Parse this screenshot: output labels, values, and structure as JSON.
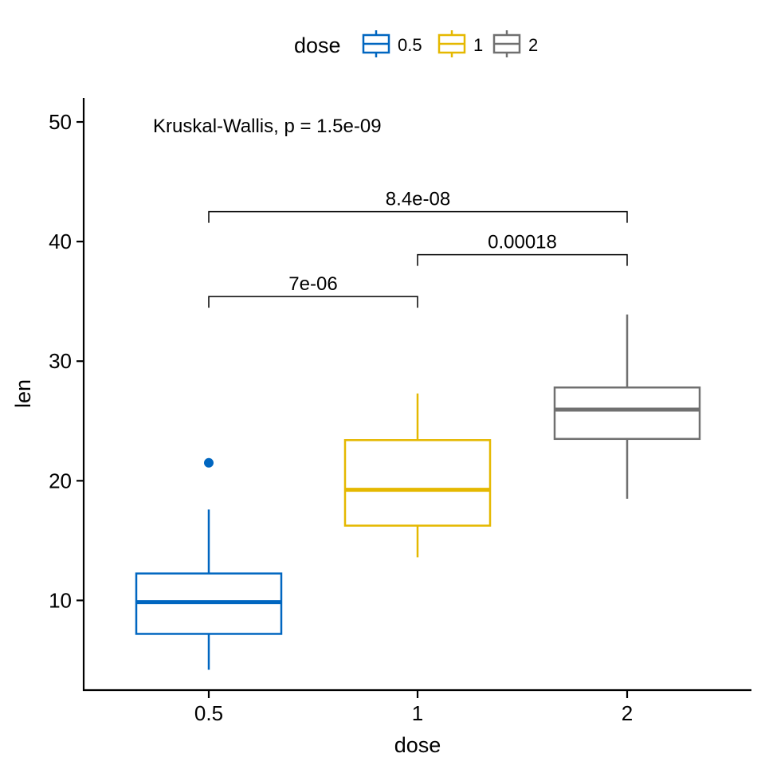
{
  "chart_data": {
    "type": "box",
    "xlabel": "dose",
    "ylabel": "len",
    "categories": [
      "0.5",
      "1",
      "2"
    ],
    "ylim": [
      2.5,
      52
    ],
    "yticks": [
      10,
      20,
      30,
      40,
      50
    ],
    "grid": false,
    "legend": {
      "title": "dose",
      "position": "top",
      "entries": [
        "0.5",
        "1",
        "2"
      ]
    },
    "series": [
      {
        "category": "0.5",
        "color": "#0066c0",
        "whisker_low": 4.2,
        "q1": 7.2,
        "median": 9.85,
        "q3": 12.25,
        "whisker_high": 17.6,
        "outliers": [
          21.5
        ]
      },
      {
        "category": "1",
        "color": "#e5b800",
        "whisker_low": 13.6,
        "q1": 16.25,
        "median": 19.25,
        "q3": 23.4,
        "whisker_high": 27.3,
        "outliers": []
      },
      {
        "category": "2",
        "color": "#707070",
        "whisker_low": 18.5,
        "q1": 23.5,
        "median": 25.95,
        "q3": 27.8,
        "whisker_high": 33.9,
        "outliers": []
      }
    ],
    "annotations": {
      "global_test": "Kruskal-Wallis, p = 1.5e-09",
      "comparisons": [
        {
          "group1": "0.5",
          "group2": "1",
          "label": "7e-06",
          "y": 35.4
        },
        {
          "group1": "1",
          "group2": "2",
          "label": "0.00018",
          "y": 38.9
        },
        {
          "group1": "0.5",
          "group2": "2",
          "label": "8.4e-08",
          "y": 42.5
        }
      ]
    }
  }
}
